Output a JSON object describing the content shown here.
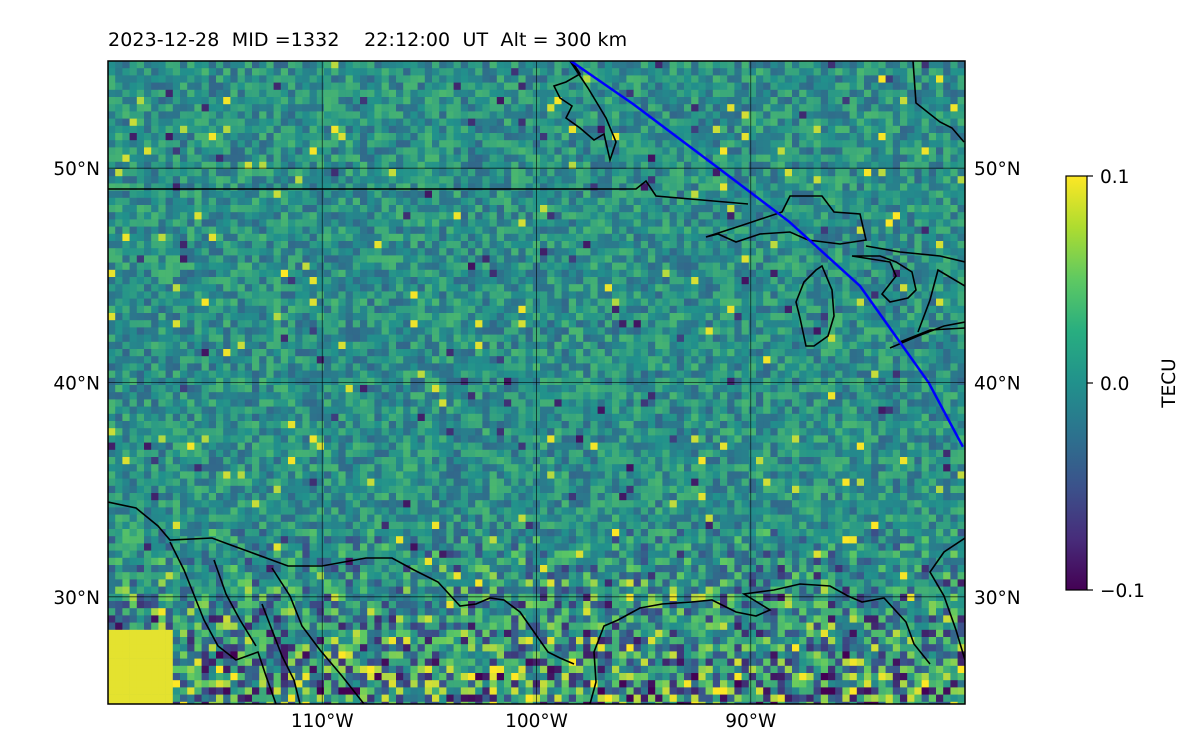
{
  "title": "2023-12-28  MID =1332    22:12:00  UT  Alt = 300 km",
  "map": {
    "lon_range": [
      -120,
      -80
    ],
    "lat_range": [
      25,
      55
    ],
    "lat_ticks": [
      {
        "value": 50,
        "label": "50°N"
      },
      {
        "value": 40,
        "label": "40°N"
      },
      {
        "value": 30,
        "label": "30°N"
      }
    ],
    "lon_ticks": [
      {
        "value": -110,
        "label": "110°W"
      },
      {
        "value": -100,
        "label": "100°W"
      },
      {
        "value": -90,
        "label": "90°W"
      }
    ],
    "gridlines": true,
    "colormap": [
      "#440154",
      "#3b528b",
      "#21918c",
      "#5ec962",
      "#fde725"
    ],
    "background_color": "#2a8c88",
    "coastline_color": "#000000",
    "track_color": "#0000ff",
    "terminator_track": [
      [
        -98.4,
        55
      ],
      [
        -95.5,
        53
      ],
      [
        -91.5,
        50
      ],
      [
        -88.2,
        47.5
      ],
      [
        -84.9,
        44.5
      ],
      [
        -81.7,
        40
      ],
      [
        -80.1,
        37
      ]
    ]
  },
  "colorbar": {
    "label": "TECU",
    "min": -0.1,
    "max": 0.1,
    "ticks": [
      {
        "value": 0.1,
        "label": "0.1"
      },
      {
        "value": 0.0,
        "label": "0.0"
      },
      {
        "value": -0.1,
        "label": "−0.1"
      }
    ]
  }
}
